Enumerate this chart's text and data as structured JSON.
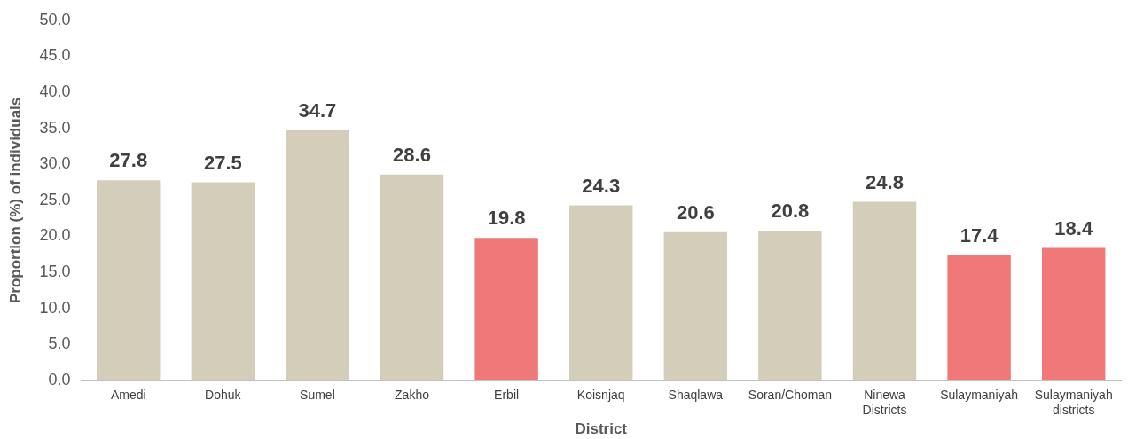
{
  "chart_data": {
    "type": "bar",
    "xlabel": "District",
    "ylabel": "Proportion (%) of individuals",
    "categories": [
      "Amedi",
      "Dohuk",
      "Sumel",
      "Zakho",
      "Erbil",
      "Koisnjaq",
      "Shaqlawa",
      "Soran/Choman",
      "Ninewa Districts",
      "Sulaymaniyah",
      "Sulaymaniyah districts"
    ],
    "values": [
      27.8,
      27.5,
      34.7,
      28.6,
      19.8,
      24.3,
      20.6,
      20.8,
      24.8,
      17.4,
      18.4
    ],
    "colors": [
      "#d3cdb9",
      "#d3cdb9",
      "#d3cdb9",
      "#d3cdb9",
      "#f07878",
      "#d3cdb9",
      "#d3cdb9",
      "#d3cdb9",
      "#d3cdb9",
      "#f07878",
      "#f07878"
    ],
    "ylim": [
      0,
      50
    ],
    "yticks": [
      {
        "value": 0,
        "label": "0.0"
      },
      {
        "value": 5,
        "label": "5.0"
      },
      {
        "value": 10,
        "label": "10.0"
      },
      {
        "value": 15,
        "label": "15.0"
      },
      {
        "value": 20,
        "label": "20.0"
      },
      {
        "value": 25,
        "label": "25.0"
      },
      {
        "value": 30,
        "label": "30.0"
      },
      {
        "value": 35,
        "label": "35.0"
      },
      {
        "value": 40,
        "label": "40.0"
      },
      {
        "value": 45,
        "label": "45.0"
      },
      {
        "value": 50,
        "label": "50.0"
      }
    ],
    "data_labels": true,
    "grid": false,
    "legend": false
  }
}
